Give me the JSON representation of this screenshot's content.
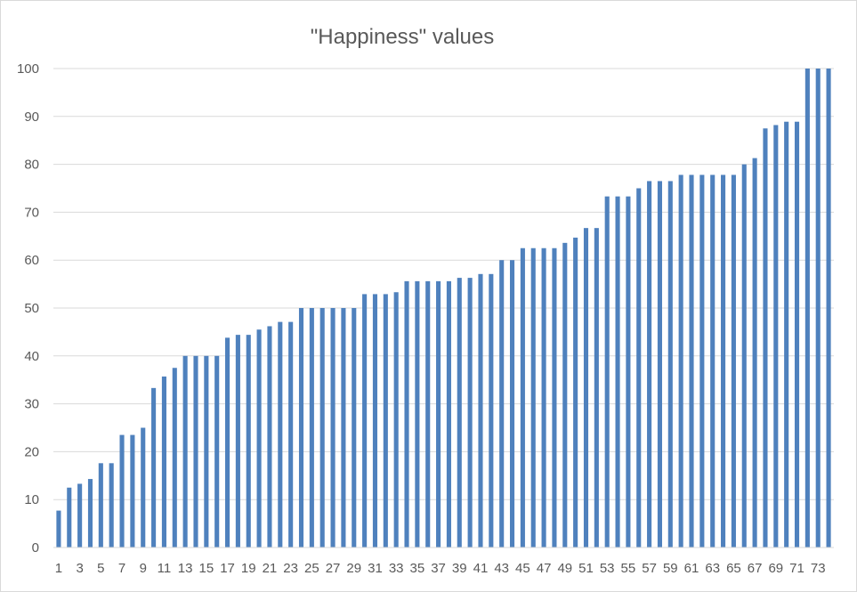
{
  "chart_data": {
    "type": "bar",
    "title": "\"Happiness\" values",
    "xlabel": "",
    "ylabel": "",
    "ylim": [
      0,
      100
    ],
    "yticks": [
      0,
      10,
      20,
      30,
      40,
      50,
      60,
      70,
      80,
      90,
      100
    ],
    "grid": true,
    "legend": "none",
    "bar_color": "#4f81bd",
    "categories": [
      1,
      2,
      3,
      4,
      5,
      6,
      7,
      8,
      9,
      10,
      11,
      12,
      13,
      14,
      15,
      16,
      17,
      18,
      19,
      20,
      21,
      22,
      23,
      24,
      25,
      26,
      27,
      28,
      29,
      30,
      31,
      32,
      33,
      34,
      35,
      36,
      37,
      38,
      39,
      40,
      41,
      42,
      43,
      44,
      45,
      46,
      47,
      48,
      49,
      50,
      51,
      52,
      53,
      54,
      55,
      56,
      57,
      58,
      59,
      60,
      61,
      62,
      63,
      64,
      65,
      66,
      67,
      68,
      69,
      70,
      71,
      72,
      73,
      74
    ],
    "x_tick_labels": [
      "1",
      "3",
      "5",
      "7",
      "9",
      "11",
      "13",
      "15",
      "17",
      "19",
      "21",
      "23",
      "25",
      "27",
      "29",
      "31",
      "33",
      "35",
      "37",
      "39",
      "41",
      "43",
      "45",
      "47",
      "49",
      "51",
      "53",
      "55",
      "57",
      "59",
      "61",
      "63",
      "65",
      "67",
      "69",
      "71",
      "73"
    ],
    "values": [
      7.7,
      12.5,
      13.3,
      14.3,
      17.6,
      17.6,
      23.5,
      23.5,
      25,
      33.3,
      35.7,
      37.5,
      40,
      40,
      40,
      40,
      43.8,
      44.4,
      44.4,
      45.5,
      46.2,
      47.1,
      47.1,
      50,
      50,
      50,
      50,
      50,
      50,
      52.9,
      52.9,
      52.9,
      53.3,
      55.6,
      55.6,
      55.6,
      55.6,
      55.6,
      56.3,
      56.3,
      57.1,
      57.1,
      60,
      60,
      62.5,
      62.5,
      62.5,
      62.5,
      63.6,
      64.7,
      66.7,
      66.7,
      73.3,
      73.3,
      73.3,
      75,
      76.5,
      76.5,
      76.5,
      77.8,
      77.8,
      77.8,
      77.8,
      77.8,
      77.8,
      80,
      81.3,
      87.5,
      88.2,
      88.9,
      88.9,
      100,
      100,
      100
    ]
  }
}
